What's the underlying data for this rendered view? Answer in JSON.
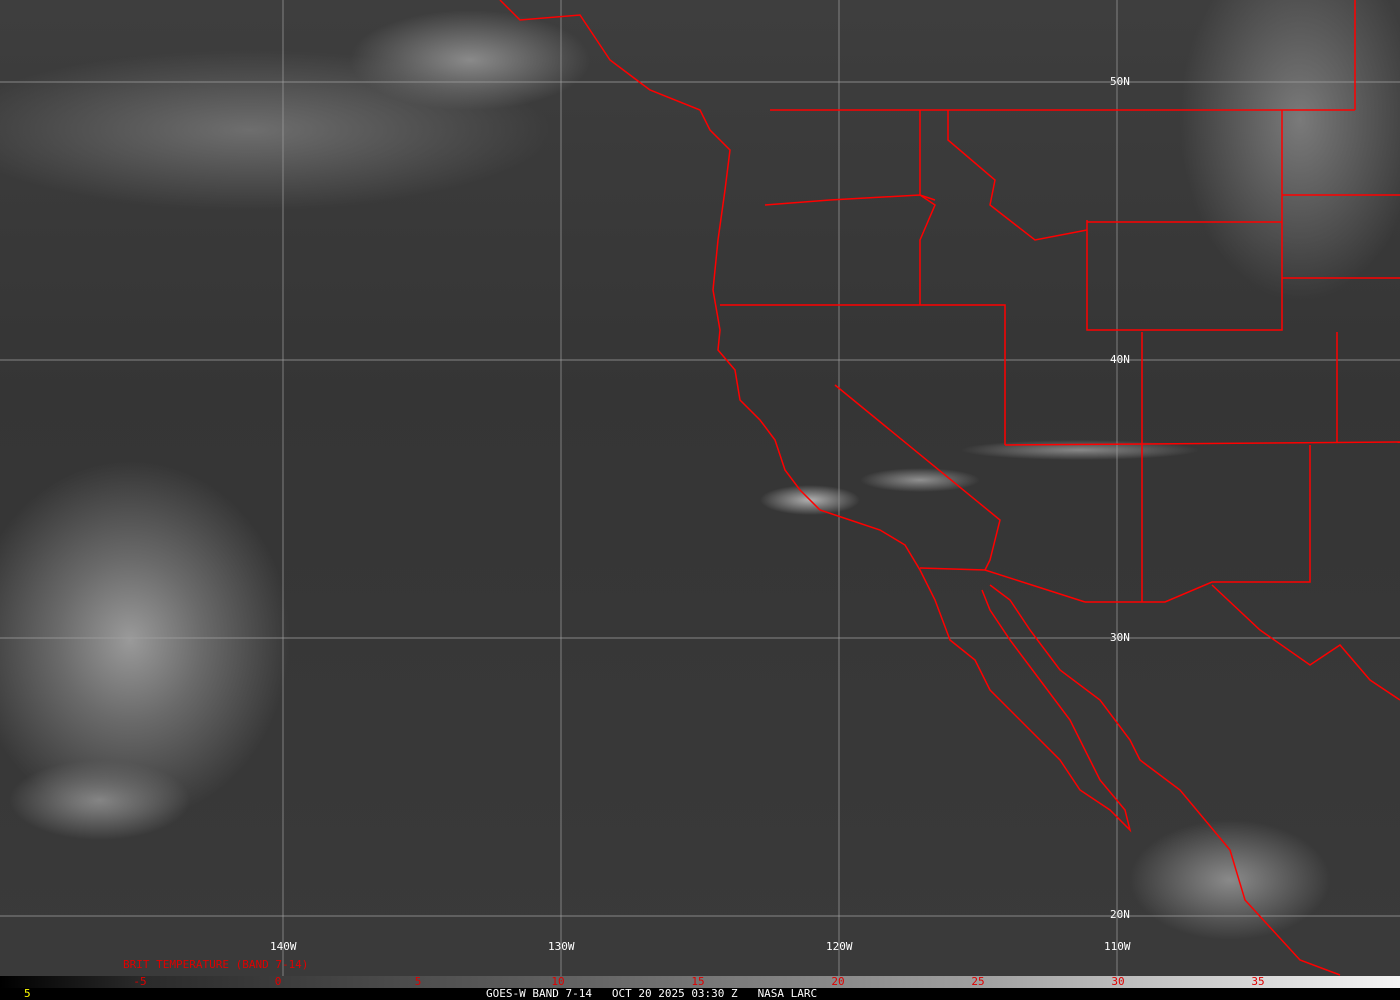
{
  "map": {
    "lat_labels": [
      "50N",
      "40N",
      "30N",
      "20N"
    ],
    "lon_labels": [
      "140W",
      "130W",
      "120W",
      "110W"
    ],
    "boundary_color": "#ff0000",
    "grid_color": "#a0a0a0"
  },
  "colorbar": {
    "title": "BRIT TEMPERATURE (BAND 7-14)",
    "ticks": [
      "-5",
      "0",
      "5",
      "10",
      "15",
      "20",
      "25",
      "30",
      "35"
    ],
    "tick_color": "#e00000",
    "left_value": "5"
  },
  "footer": {
    "satellite": "GOES-W BAND 7-14",
    "datetime": "OCT 20 2025 03:30 Z",
    "source": "NASA LARC"
  }
}
